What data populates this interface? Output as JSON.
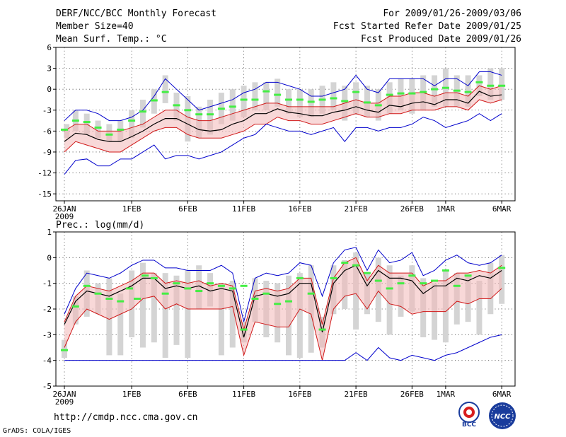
{
  "header": {
    "title": "DERF/NCC/BCC Monthly Forecast",
    "member_size": "Member Size=40",
    "variable1": "Mean Surf. Temp.: °C",
    "period": "For 2009/01/26-2009/03/06",
    "refer_date": "Fcst Started Refer Date 2009/01/25",
    "produced_date": "Fcst Produced Date 2009/01/26"
  },
  "footer": {
    "url": "http://cmdp.ncc.cma.gov.cn",
    "software": "GrADS: COLA/IGES",
    "logo_left_text": "BCC",
    "logo_right_text": "NCC"
  },
  "colors": {
    "mean": "#000000",
    "spread": "#d01818",
    "extreme": "#0000cc",
    "box": "#d4d4d4",
    "median": "#44ee44",
    "shade": "#f2b8b8"
  },
  "chart_data": [
    {
      "type": "line",
      "title": "Mean Surf. Temp.: °C",
      "xlabel": "",
      "ylabel": "°C",
      "ylim": [
        -16,
        6
      ],
      "yticks": [
        6,
        3,
        0,
        -3,
        -6,
        -9,
        -12,
        -15
      ],
      "xtick_labels": [
        {
          "day": 1,
          "label": "26JAN"
        },
        {
          "day": 7,
          "label": "1FEB"
        },
        {
          "day": 12,
          "label": "6FEB"
        },
        {
          "day": 17,
          "label": "11FEB"
        },
        {
          "day": 22,
          "label": "16FEB"
        },
        {
          "day": 27,
          "label": "21FEB"
        },
        {
          "day": 32,
          "label": "26FEB"
        },
        {
          "day": 35,
          "label": "1MAR"
        },
        {
          "day": 40,
          "label": "6MAR"
        }
      ],
      "year_label": "2009",
      "x": [
        1,
        2,
        3,
        4,
        5,
        6,
        7,
        8,
        9,
        10,
        11,
        12,
        13,
        14,
        15,
        16,
        17,
        18,
        19,
        20,
        21,
        22,
        23,
        24,
        25,
        26,
        27,
        28,
        29,
        30,
        31,
        32,
        33,
        34,
        35,
        36,
        37,
        38,
        39,
        40
      ],
      "series": [
        {
          "name": "max",
          "values": [
            -4.5,
            -3,
            -3,
            -3.5,
            -4.5,
            -4.5,
            -4,
            -3,
            -1,
            1.5,
            0,
            -1.5,
            -3,
            -2.5,
            -2,
            -1.5,
            -0.5,
            0,
            1,
            1,
            0.5,
            0,
            -1,
            -1,
            -0.5,
            0,
            2,
            0,
            -0.5,
            1.5,
            1.5,
            1.5,
            1.5,
            0.5,
            1.5,
            1.5,
            0.5,
            2.5,
            2.5,
            2
          ]
        },
        {
          "name": "mean_plus_sd",
          "values": [
            -6,
            -5,
            -5,
            -6,
            -6,
            -6,
            -5.5,
            -5,
            -4,
            -3,
            -3,
            -4,
            -4.5,
            -4.5,
            -4,
            -3.5,
            -3,
            -2.5,
            -2,
            -2,
            -2.5,
            -2.5,
            -2.5,
            -2.5,
            -2.5,
            -2,
            -1.5,
            -2,
            -2,
            -1,
            -1,
            -0.5,
            -0.5,
            -1,
            -0.5,
            -0.5,
            -1,
            0.5,
            0,
            0.5
          ]
        },
        {
          "name": "mean",
          "values": [
            -7.5,
            -6.3,
            -6.5,
            -7.2,
            -7.5,
            -7.5,
            -6.8,
            -6,
            -5,
            -4.2,
            -4.2,
            -5,
            -5.8,
            -6,
            -5.8,
            -5,
            -4.5,
            -3.5,
            -3.5,
            -2.8,
            -3.3,
            -3.5,
            -3.8,
            -3.8,
            -3.3,
            -3,
            -2.5,
            -3,
            -3.3,
            -2.3,
            -2.5,
            -2,
            -1.8,
            -2.2,
            -1.5,
            -1.5,
            -2,
            -0.3,
            -1,
            -0.8
          ]
        },
        {
          "name": "mean_minus_sd",
          "values": [
            -9,
            -7.5,
            -8,
            -8.5,
            -9,
            -9,
            -8,
            -7,
            -6,
            -5.5,
            -5.5,
            -6.5,
            -7,
            -7,
            -7,
            -6.5,
            -6,
            -5,
            -5,
            -4,
            -4.5,
            -4.5,
            -5,
            -5,
            -4.5,
            -4,
            -3.5,
            -4,
            -4,
            -3.5,
            -3.5,
            -3,
            -3,
            -3,
            -2.5,
            -2.5,
            -3,
            -1.5,
            -2,
            -1.5
          ]
        },
        {
          "name": "min",
          "values": [
            -12.2,
            -10.2,
            -10,
            -11,
            -11,
            -10,
            -10,
            -9,
            -8,
            -10,
            -9.5,
            -9.5,
            -10,
            -9.5,
            -9,
            -8,
            -7,
            -6.5,
            -5,
            -5.5,
            -6,
            -6,
            -6.5,
            -6,
            -5.5,
            -7.5,
            -5.5,
            -5.5,
            -6,
            -5.5,
            -5.5,
            -5,
            -4,
            -4.5,
            -5.5,
            -5,
            -4.5,
            -3.5,
            -4.5,
            -3.5
          ]
        }
      ],
      "median_marks": [
        -5.8,
        -4.5,
        -4.7,
        -5.5,
        -6.5,
        -5.8,
        -4.5,
        -3.2,
        -1.6,
        -0.4,
        -2.3,
        -3,
        -3.6,
        -3.6,
        -2.8,
        -2.5,
        -1.5,
        -1.5,
        -0.3,
        -0.8,
        -1.5,
        -1.5,
        -1.8,
        -1.5,
        -1.3,
        -1.7,
        -0.4,
        -1.9,
        -2.3,
        -0.8,
        -0.6,
        -0.6,
        -0.4,
        0,
        0.2,
        -0.2,
        -0.4,
        1,
        0.5,
        0.5
      ],
      "boxes": [
        [
          -7,
          -5
        ],
        [
          -6,
          -3
        ],
        [
          -6.5,
          -3.5
        ],
        [
          -7,
          -4.5
        ],
        [
          -7.5,
          -5
        ],
        [
          -7.5,
          -4.5
        ],
        [
          -7,
          -3
        ],
        [
          -5.5,
          -1.5
        ],
        [
          -3.5,
          0
        ],
        [
          -2,
          2
        ],
        [
          -4.5,
          -0.5
        ],
        [
          -7.5,
          -1
        ],
        [
          -7,
          -2.5
        ],
        [
          -6.5,
          -1.5
        ],
        [
          -5,
          -0.5
        ],
        [
          -4.5,
          0
        ],
        [
          -4,
          0.5
        ],
        [
          -3,
          1
        ],
        [
          -3,
          1
        ],
        [
          -2.5,
          1.5
        ],
        [
          -3.5,
          0
        ],
        [
          -4,
          0
        ],
        [
          -4,
          0
        ],
        [
          -3.5,
          0.5
        ],
        [
          -3,
          1
        ],
        [
          -4.5,
          0.5
        ],
        [
          -3.5,
          1
        ],
        [
          -4,
          0.5
        ],
        [
          -4.5,
          0
        ],
        [
          -3.5,
          1
        ],
        [
          -3,
          1.5
        ],
        [
          -3.5,
          1.5
        ],
        [
          -3,
          2
        ],
        [
          -2.5,
          2
        ],
        [
          -2.5,
          3
        ],
        [
          -2.5,
          2
        ],
        [
          -2.5,
          2
        ],
        [
          -1,
          2
        ],
        [
          -1.5,
          3
        ],
        [
          -1.5,
          3
        ]
      ],
      "box_x": [
        1.2,
        2,
        3,
        4,
        5,
        6,
        7,
        8,
        9,
        10,
        11,
        12,
        13,
        14,
        15,
        16,
        17,
        18,
        19,
        20,
        21,
        22,
        23,
        24,
        25,
        26,
        27,
        28,
        29,
        30,
        31,
        32,
        33,
        34,
        35,
        36,
        37,
        38,
        39,
        40
      ]
    },
    {
      "type": "line",
      "title": "Prec.: log(mm/d)",
      "xlabel": "",
      "ylabel": "log(mm/d)",
      "ylim": [
        -5,
        1
      ],
      "yticks": [
        1,
        0,
        -1,
        -2,
        -3,
        -4,
        -5
      ],
      "xtick_labels": [
        {
          "day": 1,
          "label": "26JAN"
        },
        {
          "day": 7,
          "label": "1FEB"
        },
        {
          "day": 12,
          "label": "6FEB"
        },
        {
          "day": 17,
          "label": "11FEB"
        },
        {
          "day": 22,
          "label": "16FEB"
        },
        {
          "day": 27,
          "label": "21FEB"
        },
        {
          "day": 32,
          "label": "26FEB"
        },
        {
          "day": 35,
          "label": "1MAR"
        },
        {
          "day": 40,
          "label": "6MAR"
        }
      ],
      "year_label": "2009",
      "x": [
        1,
        2,
        3,
        4,
        5,
        6,
        7,
        8,
        9,
        10,
        11,
        12,
        13,
        14,
        15,
        16,
        17,
        18,
        19,
        20,
        21,
        22,
        23,
        24,
        25,
        26,
        27,
        28,
        29,
        30,
        31,
        32,
        33,
        34,
        35,
        36,
        37,
        38,
        39,
        40
      ],
      "series": [
        {
          "name": "max",
          "values": [
            -2.2,
            -1.2,
            -0.6,
            -0.7,
            -0.8,
            -0.6,
            -0.3,
            -0.1,
            -0.1,
            -0.4,
            -0.4,
            -0.5,
            -0.5,
            -0.5,
            -0.3,
            -0.6,
            -2.5,
            -0.8,
            -0.6,
            -0.7,
            -0.6,
            -0.2,
            -0.3,
            -1.5,
            -0.2,
            0.3,
            0.4,
            -0.5,
            0.3,
            -0.2,
            -0.1,
            0.2,
            -0.7,
            -0.5,
            -0.1,
            0.1,
            -0.2,
            -0.3,
            -0.2,
            0.1
          ]
        },
        {
          "name": "mean_plus_sd",
          "values": [
            -2.5,
            -1.5,
            -1.1,
            -1.2,
            -1.3,
            -1.1,
            -0.9,
            -0.6,
            -0.6,
            -1,
            -0.9,
            -1,
            -0.9,
            -1.1,
            -1,
            -1.1,
            -2.8,
            -1.3,
            -1.2,
            -1.3,
            -1.2,
            -0.8,
            -0.8,
            -2.6,
            -0.8,
            -0.2,
            0,
            -0.9,
            -0.3,
            -0.6,
            -0.6,
            -0.6,
            -1.1,
            -0.9,
            -0.9,
            -0.6,
            -0.6,
            -0.5,
            -0.6,
            -0.3
          ]
        },
        {
          "name": "mean",
          "values": [
            -2.6,
            -1.7,
            -1.3,
            -1.4,
            -1.5,
            -1.3,
            -1.1,
            -0.8,
            -0.8,
            -1.2,
            -1.1,
            -1.2,
            -1.1,
            -1.3,
            -1.2,
            -1.3,
            -3.1,
            -1.5,
            -1.4,
            -1.5,
            -1.4,
            -1,
            -1,
            -2.9,
            -1,
            -0.5,
            -0.3,
            -1.1,
            -0.5,
            -0.8,
            -0.8,
            -0.9,
            -1.4,
            -1.1,
            -1.1,
            -0.8,
            -0.9,
            -0.7,
            -0.8,
            -0.5
          ]
        },
        {
          "name": "mean_minus_sd",
          "values": [
            -3.5,
            -2.5,
            -2,
            -2.2,
            -2.4,
            -2.2,
            -2,
            -1.6,
            -1.5,
            -2,
            -1.8,
            -2,
            -2,
            -2,
            -2,
            -1.9,
            -3.8,
            -2.5,
            -2.6,
            -2.7,
            -2.7,
            -2,
            -2.2,
            -4,
            -2,
            -1.5,
            -1.4,
            -2,
            -1.3,
            -1.8,
            -1.9,
            -2.2,
            -2.1,
            -2.1,
            -2.1,
            -1.7,
            -1.8,
            -1.6,
            -1.6,
            -1.2
          ]
        },
        {
          "name": "min",
          "values": [
            -4,
            -4,
            -4,
            -4,
            -4,
            -4,
            -4,
            -4,
            -4,
            -4,
            -4,
            -4,
            -4,
            -4,
            -4,
            -4,
            -4,
            -4,
            -4,
            -4,
            -4,
            -4,
            -4,
            -4,
            -4,
            -4,
            -3.7,
            -4,
            -3.5,
            -3.9,
            -4,
            -3.8,
            -3.9,
            -4,
            -3.8,
            -3.7,
            -3.5,
            -3.3,
            -3.1,
            -3
          ]
        }
      ],
      "median_marks": [
        -3.6,
        -1.9,
        -1.1,
        -1.4,
        -1.6,
        -1.7,
        -1.2,
        -1.6,
        -0.7,
        -0.8,
        -1.4,
        -1,
        -1.2,
        -1.3,
        -1,
        -1.1,
        -1.2,
        -1.1,
        -2.8,
        -1.6,
        -1.4,
        -1.8,
        -1.7,
        -0.8,
        -1.4,
        -2.8,
        -0.8,
        -0.2,
        -0.3,
        -0.6,
        -0.9,
        -1.2,
        -1,
        -0.7,
        -1,
        -0.9,
        -0.5,
        -1.1,
        -0.7,
        -0.4
      ],
      "median_x": [
        1,
        2,
        3,
        4,
        5,
        6,
        6.8,
        7.5,
        8.2,
        9,
        10,
        11,
        12,
        13,
        14,
        15,
        16,
        17,
        17,
        18,
        19,
        20,
        21,
        22,
        23,
        24,
        25,
        26,
        27,
        28,
        29,
        30,
        31,
        32,
        33,
        34,
        35,
        36,
        37,
        40
      ],
      "boxes": [
        [
          -3.9,
          -3.2
        ],
        [
          -2.6,
          -1.5
        ],
        [
          -2.3,
          -0.5
        ],
        [
          -2.2,
          -1
        ],
        [
          -3.8,
          -0.8
        ],
        [
          -3.8,
          -1.4
        ],
        [
          -3.1,
          -0.5
        ],
        [
          -3.5,
          -0.2
        ],
        [
          -3.3,
          -0.6
        ],
        [
          -3.9,
          -0.6
        ],
        [
          -3.4,
          -0.7
        ],
        [
          -3.9,
          -0.5
        ],
        [
          -2,
          -0.3
        ],
        [
          -1.9,
          -0.6
        ],
        [
          -3.8,
          -1
        ],
        [
          -3.5,
          -0.9
        ],
        [
          -3.3,
          -2.5
        ],
        [
          -2.5,
          -0.8
        ],
        [
          -3.1,
          -0.9
        ],
        [
          -3.3,
          -1
        ],
        [
          -3.8,
          -0.7
        ],
        [
          -3.9,
          -0.6
        ],
        [
          -3.7,
          -0.3
        ],
        [
          -3.5,
          -2.3
        ],
        [
          -2.2,
          -0.3
        ],
        [
          -2,
          -0.1
        ],
        [
          -2.8,
          0.2
        ],
        [
          -2.2,
          -0.6
        ],
        [
          -2.5,
          0
        ],
        [
          -3,
          -0.3
        ],
        [
          -2.3,
          -0.7
        ],
        [
          -2.1,
          -0.3
        ],
        [
          -3.1,
          -0.8
        ],
        [
          -3.2,
          -1
        ],
        [
          -3.3,
          -0.5
        ],
        [
          -2.6,
          -0.6
        ],
        [
          -2.5,
          -0.7
        ],
        [
          -3,
          -0.9
        ],
        [
          -2.2,
          -0.2
        ],
        [
          -1.8,
          0.1
        ]
      ]
    }
  ]
}
